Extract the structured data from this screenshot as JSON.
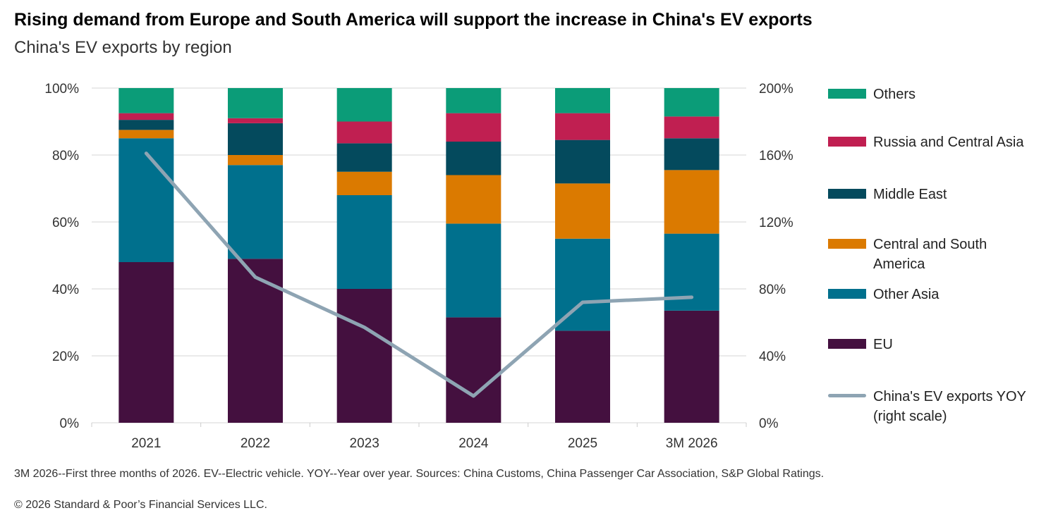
{
  "chart_data": {
    "type": "bar",
    "stacked": true,
    "title": "Rising demand from Europe and South America will support the increase in China's EV exports",
    "subtitle": "China's EV exports by region",
    "categories": [
      "2021",
      "2022",
      "2023",
      "2024",
      "2025",
      "3M 2026"
    ],
    "series": [
      {
        "name": "EU",
        "color": "#44103f",
        "values": [
          48,
          49,
          40,
          31.5,
          27.5,
          33.5
        ]
      },
      {
        "name": "Other Asia",
        "color": "#00708d",
        "values": [
          37,
          28,
          28,
          28,
          27.5,
          23
        ]
      },
      {
        "name": "Central and South America",
        "color": "#db7a00",
        "values": [
          2.5,
          3,
          7,
          14.5,
          16.5,
          19
        ]
      },
      {
        "name": "Middle East",
        "color": "#044a5d",
        "values": [
          3,
          9.5,
          8.5,
          10,
          13,
          9.5
        ]
      },
      {
        "name": "Russia and Central Asia",
        "color": "#c01f51",
        "values": [
          2,
          1.5,
          6.5,
          8.5,
          8,
          6.5
        ]
      },
      {
        "name": "Others",
        "color": "#0b9c78",
        "values": [
          7.5,
          9,
          10,
          7.5,
          7.5,
          8.5
        ]
      }
    ],
    "line_series": {
      "name": "China's EV exports YOY (right scale)",
      "color": "#8ea4b3",
      "values": [
        161,
        87,
        57,
        16,
        72,
        75
      ]
    },
    "y_left": {
      "min": 0,
      "max": 100,
      "ticks": [
        "0%",
        "20%",
        "40%",
        "60%",
        "80%",
        "100%"
      ]
    },
    "y_right": {
      "min": 0,
      "max": 200,
      "ticks": [
        "0%",
        "40%",
        "80%",
        "120%",
        "160%",
        "200%"
      ]
    },
    "grid": true,
    "legend_position": "right"
  },
  "legend_order": [
    "Others",
    "Russia and Central Asia",
    "Middle East",
    "Central and South America",
    "Other Asia",
    "EU",
    "China's EV exports YOY (right scale)"
  ],
  "footnote": "3M 2026--First three months of 2026. EV--Electric vehicle. YOY--Year over year. Sources: China Customs, China Passenger Car Association, S&P Global Ratings.",
  "copyright": "© 2026 Standard & Poor’s Financial Services LLC."
}
